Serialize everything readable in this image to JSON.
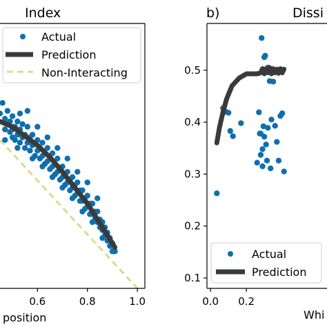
{
  "colors": {
    "actual": "#0f6fad",
    "prediction": "#3a3a3a",
    "non_interacting": "#d8dc8c",
    "axes": "#000000",
    "legend_border": "#cccccc"
  },
  "chart_data": [
    {
      "type": "scatter",
      "panel_label": "",
      "title": "Index",
      "xlabel": "position",
      "ylabel": "",
      "xlim": [
        0.45,
        1.03
      ],
      "ylim": [
        0.0,
        1.0
      ],
      "x_ticks": [
        0.6,
        0.8,
        1.0
      ],
      "x_tick_labels": [
        "0.6",
        "0.8",
        "1.0"
      ],
      "grid": false,
      "legend": {
        "placement": "top",
        "entries": [
          {
            "label": "Actual",
            "kind": "marker"
          },
          {
            "label": "Prediction",
            "kind": "line"
          },
          {
            "label": "Non-Interacting",
            "kind": "dashed"
          }
        ]
      },
      "series": [
        {
          "name": "Actual",
          "kind": "scatter",
          "points": [
            [
              0.45,
              0.66
            ],
            [
              0.46,
              0.7
            ],
            [
              0.47,
              0.6
            ],
            [
              0.47,
              0.64
            ],
            [
              0.48,
              0.67
            ],
            [
              0.48,
              0.62
            ],
            [
              0.49,
              0.63
            ],
            [
              0.49,
              0.59
            ],
            [
              0.5,
              0.65
            ],
            [
              0.5,
              0.6
            ],
            [
              0.5,
              0.57
            ],
            [
              0.51,
              0.61
            ],
            [
              0.51,
              0.56
            ],
            [
              0.52,
              0.63
            ],
            [
              0.52,
              0.58
            ],
            [
              0.53,
              0.6
            ],
            [
              0.53,
              0.55
            ],
            [
              0.54,
              0.62
            ],
            [
              0.54,
              0.57
            ],
            [
              0.55,
              0.58
            ],
            [
              0.55,
              0.53
            ],
            [
              0.56,
              0.61
            ],
            [
              0.56,
              0.55
            ],
            [
              0.57,
              0.57
            ],
            [
              0.57,
              0.52
            ],
            [
              0.58,
              0.58
            ],
            [
              0.58,
              0.54
            ],
            [
              0.59,
              0.55
            ],
            [
              0.59,
              0.5
            ],
            [
              0.6,
              0.56
            ],
            [
              0.6,
              0.52
            ],
            [
              0.61,
              0.53
            ],
            [
              0.61,
              0.49
            ],
            [
              0.62,
              0.55
            ],
            [
              0.62,
              0.5
            ],
            [
              0.63,
              0.51
            ],
            [
              0.63,
              0.47
            ],
            [
              0.64,
              0.53
            ],
            [
              0.64,
              0.48
            ],
            [
              0.65,
              0.49
            ],
            [
              0.65,
              0.45
            ],
            [
              0.66,
              0.51
            ],
            [
              0.66,
              0.46
            ],
            [
              0.67,
              0.47
            ],
            [
              0.67,
              0.43
            ],
            [
              0.68,
              0.49
            ],
            [
              0.68,
              0.44
            ],
            [
              0.69,
              0.45
            ],
            [
              0.69,
              0.41
            ],
            [
              0.7,
              0.46
            ],
            [
              0.7,
              0.42
            ],
            [
              0.71,
              0.43
            ],
            [
              0.71,
              0.39
            ],
            [
              0.72,
              0.44
            ],
            [
              0.72,
              0.4
            ],
            [
              0.73,
              0.41
            ],
            [
              0.73,
              0.37
            ],
            [
              0.74,
              0.42
            ],
            [
              0.74,
              0.38
            ],
            [
              0.75,
              0.39
            ],
            [
              0.75,
              0.35
            ],
            [
              0.76,
              0.4
            ],
            [
              0.76,
              0.36
            ],
            [
              0.77,
              0.37
            ],
            [
              0.77,
              0.33
            ],
            [
              0.78,
              0.37
            ],
            [
              0.78,
              0.33
            ],
            [
              0.79,
              0.34
            ],
            [
              0.79,
              0.3
            ],
            [
              0.8,
              0.35
            ],
            [
              0.8,
              0.31
            ],
            [
              0.81,
              0.32
            ],
            [
              0.81,
              0.28
            ],
            [
              0.82,
              0.32
            ],
            [
              0.82,
              0.28
            ],
            [
              0.83,
              0.29
            ],
            [
              0.83,
              0.26
            ],
            [
              0.84,
              0.29
            ],
            [
              0.84,
              0.25
            ],
            [
              0.85,
              0.26
            ],
            [
              0.85,
              0.23
            ],
            [
              0.86,
              0.25
            ],
            [
              0.86,
              0.22
            ],
            [
              0.87,
              0.23
            ],
            [
              0.87,
              0.2
            ],
            [
              0.88,
              0.21
            ],
            [
              0.88,
              0.18
            ],
            [
              0.89,
              0.19
            ],
            [
              0.89,
              0.16
            ],
            [
              0.9,
              0.17
            ],
            [
              0.9,
              0.14
            ],
            [
              0.91,
              0.14
            ],
            [
              0.56,
              0.67
            ],
            [
              0.6,
              0.61
            ],
            [
              0.64,
              0.57
            ],
            [
              0.68,
              0.53
            ],
            [
              0.72,
              0.49
            ],
            [
              0.76,
              0.44
            ],
            [
              0.8,
              0.4
            ],
            [
              0.84,
              0.34
            ],
            [
              0.53,
              0.66
            ],
            [
              0.47,
              0.56
            ],
            [
              0.52,
              0.53
            ],
            [
              0.58,
              0.49
            ],
            [
              0.62,
              0.46
            ],
            [
              0.66,
              0.42
            ],
            [
              0.7,
              0.38
            ],
            [
              0.74,
              0.34
            ],
            [
              0.78,
              0.29
            ],
            [
              0.82,
              0.25
            ],
            [
              0.86,
              0.19
            ]
          ]
        },
        {
          "name": "Prediction",
          "kind": "line",
          "points": [
            [
              0.45,
              0.63
            ],
            [
              0.5,
              0.61
            ],
            [
              0.55,
              0.575
            ],
            [
              0.6,
              0.54
            ],
            [
              0.65,
              0.495
            ],
            [
              0.7,
              0.44
            ],
            [
              0.75,
              0.38
            ],
            [
              0.8,
              0.32
            ],
            [
              0.85,
              0.245
            ],
            [
              0.88,
              0.2
            ],
            [
              0.91,
              0.155
            ]
          ]
        },
        {
          "name": "Non-Interacting",
          "kind": "dashed",
          "points": [
            [
              0.45,
              0.56
            ],
            [
              1.0,
              0.0
            ]
          ]
        }
      ]
    },
    {
      "type": "scatter",
      "panel_label": "b)",
      "title": "Dissi",
      "xlabel": "Whi",
      "ylabel": "",
      "xlim": [
        -0.02,
        0.65
      ],
      "ylim": [
        0.08,
        0.59
      ],
      "x_ticks": [
        0.0,
        0.2
      ],
      "x_tick_labels": [
        "0.0",
        "0.2"
      ],
      "y_ticks": [
        0.1,
        0.2,
        0.3,
        0.4,
        0.5
      ],
      "y_tick_labels": [
        "0.1",
        "0.2",
        "0.3",
        "0.4",
        "0.5"
      ],
      "grid": false,
      "legend": {
        "placement": "bottom-left",
        "entries": [
          {
            "label": "Actual",
            "kind": "marker"
          },
          {
            "label": "Prediction",
            "kind": "line"
          }
        ]
      },
      "series": [
        {
          "name": "Actual",
          "kind": "scatter",
          "points": [
            [
              0.035,
              0.263
            ],
            [
              0.07,
              0.427
            ],
            [
              0.085,
              0.42
            ],
            [
              0.1,
              0.418
            ],
            [
              0.11,
              0.383
            ],
            [
              0.125,
              0.373
            ],
            [
              0.17,
              0.398
            ],
            [
              0.26,
              0.322
            ],
            [
              0.27,
              0.419
            ],
            [
              0.275,
              0.378
            ],
            [
              0.28,
              0.337
            ],
            [
              0.285,
              0.562
            ],
            [
              0.29,
              0.315
            ],
            [
              0.295,
              0.392
            ],
            [
              0.3,
              0.525
            ],
            [
              0.305,
              0.528
            ],
            [
              0.31,
              0.357
            ],
            [
              0.315,
              0.326
            ],
            [
              0.32,
              0.389
            ],
            [
              0.325,
              0.499
            ],
            [
              0.33,
              0.479
            ],
            [
              0.335,
              0.311
            ],
            [
              0.34,
              0.405
            ],
            [
              0.345,
              0.497
            ],
            [
              0.35,
              0.478
            ],
            [
              0.36,
              0.393
            ],
            [
              0.37,
              0.362
            ],
            [
              0.38,
              0.326
            ],
            [
              0.39,
              0.412
            ],
            [
              0.4,
              0.417
            ],
            [
              0.41,
              0.305
            ],
            [
              0.29,
              0.348
            ],
            [
              0.3,
              0.372
            ],
            [
              0.32,
              0.505
            ],
            [
              0.28,
              0.378
            ]
          ]
        },
        {
          "name": "Prediction",
          "kind": "line",
          "points": [
            [
              0.035,
              0.36
            ],
            [
              0.05,
              0.39
            ],
            [
              0.07,
              0.42
            ],
            [
              0.09,
              0.445
            ],
            [
              0.12,
              0.47
            ],
            [
              0.16,
              0.485
            ],
            [
              0.2,
              0.493
            ],
            [
              0.26,
              0.493
            ],
            [
              0.28,
              0.495
            ],
            [
              0.29,
              0.503
            ],
            [
              0.3,
              0.493
            ],
            [
              0.31,
              0.503
            ],
            [
              0.32,
              0.495
            ],
            [
              0.33,
              0.505
            ],
            [
              0.34,
              0.493
            ],
            [
              0.35,
              0.503
            ],
            [
              0.36,
              0.495
            ],
            [
              0.37,
              0.502
            ],
            [
              0.38,
              0.494
            ],
            [
              0.39,
              0.503
            ],
            [
              0.4,
              0.495
            ],
            [
              0.41,
              0.502
            ]
          ]
        }
      ]
    }
  ]
}
